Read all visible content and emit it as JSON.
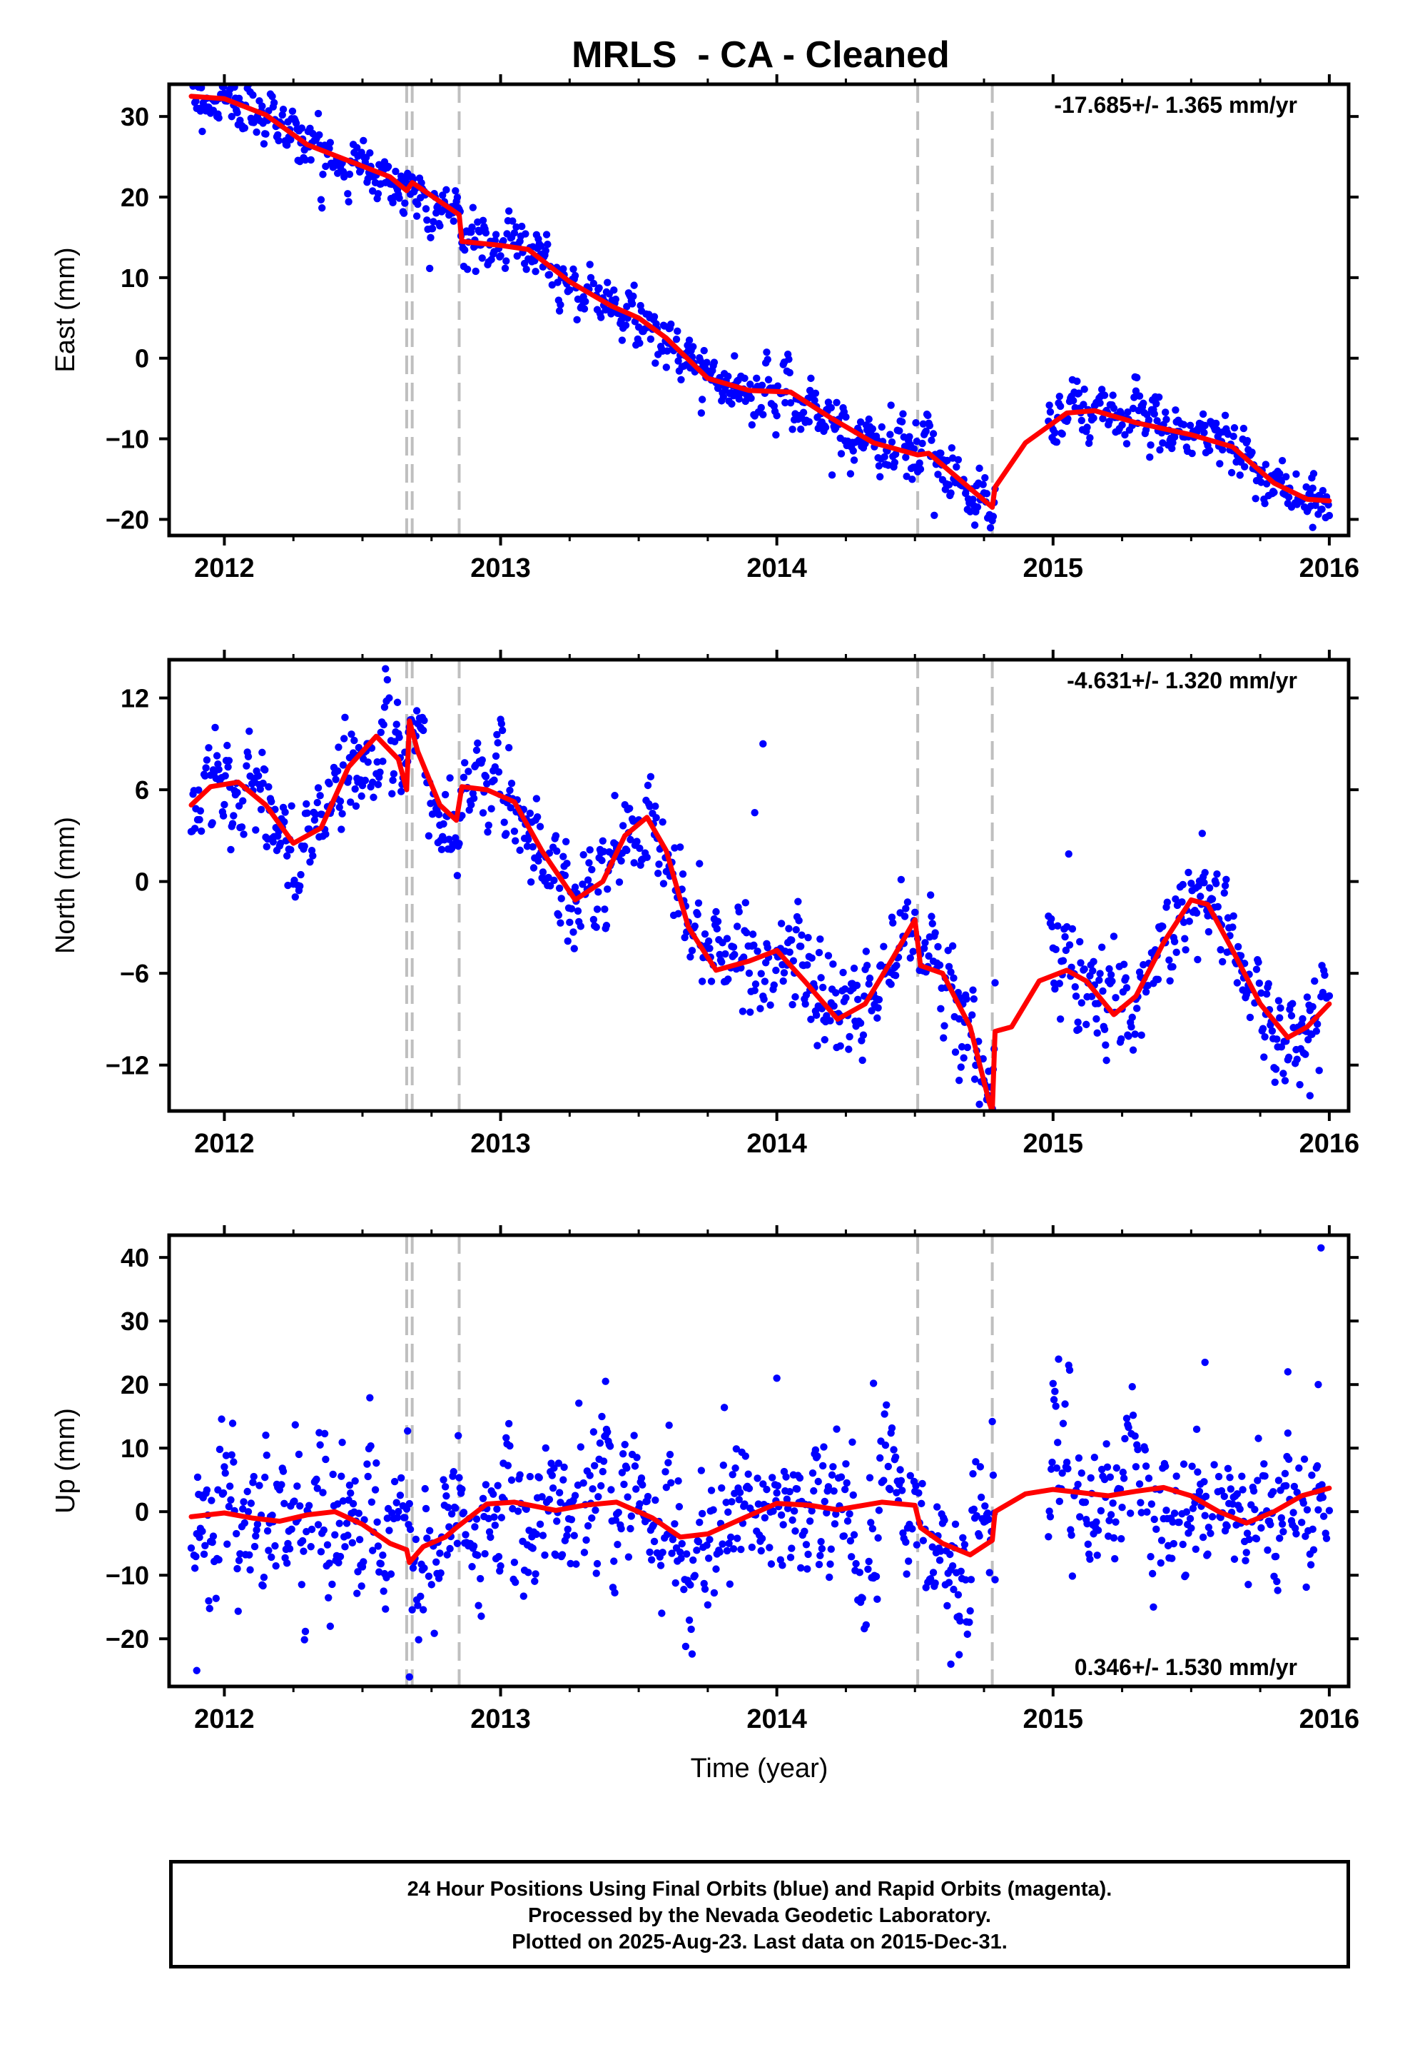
{
  "title": "MRLS  - CA - Cleaned",
  "xlabel": "Time (year)",
  "colors": {
    "final_orbits": "#0000ff",
    "model_fit": "#ff0000",
    "offset_lines": "#bfbfbf",
    "frame": "#000000"
  },
  "footer": {
    "line1": "24 Hour Positions Using Final Orbits (blue) and Rapid Orbits (magenta).",
    "line2": "Processed by the Nevada Geodetic Laboratory.",
    "line3": "Plotted on 2025-Aug-23. Last data on 2015-Dec-31."
  },
  "chart_data": [
    {
      "type": "scatter",
      "name": "east",
      "ylabel": "East (mm)",
      "rate_label": "-17.685+/- 1.365 mm/yr",
      "rate_position": "top-right",
      "xlim": [
        2011.8,
        2016.07
      ],
      "ylim": [
        -22,
        34
      ],
      "xticks": [
        2012,
        2013,
        2014,
        2015,
        2016
      ],
      "yticks": [
        -20,
        -10,
        0,
        10,
        20,
        30
      ],
      "offset_epochs": [
        2012.66,
        2012.68,
        2012.85,
        2014.51,
        2014.78
      ],
      "data_gap": [
        2014.79,
        2014.98
      ],
      "seasonal_scatter_mm": 1.6,
      "outliers": [
        [
          2014.57,
          -19.5
        ],
        [
          2015.94,
          -21
        ],
        [
          2014.2,
          -14.5
        ]
      ],
      "trend_knots": [
        [
          2011.88,
          32.5
        ],
        [
          2012.0,
          32.2
        ],
        [
          2012.15,
          30.2
        ],
        [
          2012.3,
          26.5
        ],
        [
          2012.45,
          24.5
        ],
        [
          2012.6,
          22.5
        ],
        [
          2012.66,
          20.8
        ],
        [
          2012.68,
          21.8
        ],
        [
          2012.85,
          17.8
        ],
        [
          2012.86,
          14.5
        ],
        [
          2013.0,
          14.0
        ],
        [
          2013.1,
          13.5
        ],
        [
          2013.25,
          9.5
        ],
        [
          2013.4,
          6.5
        ],
        [
          2013.5,
          5.0
        ],
        [
          2013.6,
          2.5
        ],
        [
          2013.75,
          -2.5
        ],
        [
          2013.9,
          -4.0
        ],
        [
          2014.05,
          -4.2
        ],
        [
          2014.2,
          -7.5
        ],
        [
          2014.35,
          -10.5
        ],
        [
          2014.51,
          -12.0
        ],
        [
          2014.55,
          -11.8
        ],
        [
          2014.78,
          -18.5
        ],
        [
          2014.79,
          -16.0
        ],
        [
          2014.9,
          -10.5
        ],
        [
          2015.05,
          -6.8
        ],
        [
          2015.15,
          -6.5
        ],
        [
          2015.3,
          -8.0
        ],
        [
          2015.5,
          -9.5
        ],
        [
          2015.65,
          -11.0
        ],
        [
          2015.8,
          -15.5
        ],
        [
          2015.92,
          -17.5
        ],
        [
          2016.0,
          -17.7
        ]
      ]
    },
    {
      "type": "scatter",
      "name": "north",
      "ylabel": "North (mm)",
      "rate_label": "-4.631+/- 1.320 mm/yr",
      "rate_position": "top-right",
      "xlim": [
        2011.8,
        2016.07
      ],
      "ylim": [
        -15,
        14.5
      ],
      "xticks": [
        2012,
        2013,
        2014,
        2015,
        2016
      ],
      "yticks": [
        -12,
        -6,
        0,
        6,
        12
      ],
      "offset_epochs": [
        2012.66,
        2012.68,
        2012.85,
        2014.51,
        2014.78
      ],
      "data_gap": [
        2014.79,
        2014.98
      ],
      "seasonal_scatter_mm": 1.6,
      "outliers": [
        [
          2013.92,
          4.5
        ],
        [
          2013.95,
          9.0
        ],
        [
          2015.93,
          -14.0
        ],
        [
          2014.66,
          -13.0
        ]
      ],
      "trend_knots": [
        [
          2011.88,
          5.0
        ],
        [
          2011.95,
          6.2
        ],
        [
          2012.05,
          6.5
        ],
        [
          2012.15,
          5.0
        ],
        [
          2012.25,
          2.5
        ],
        [
          2012.35,
          3.5
        ],
        [
          2012.45,
          7.5
        ],
        [
          2012.55,
          9.5
        ],
        [
          2012.63,
          8.0
        ],
        [
          2012.66,
          6.0
        ],
        [
          2012.67,
          10.5
        ],
        [
          2012.7,
          8.5
        ],
        [
          2012.78,
          5.0
        ],
        [
          2012.84,
          4.0
        ],
        [
          2012.86,
          6.2
        ],
        [
          2012.95,
          6.0
        ],
        [
          2013.05,
          5.2
        ],
        [
          2013.15,
          2.0
        ],
        [
          2013.27,
          -1.2
        ],
        [
          2013.37,
          0.0
        ],
        [
          2013.45,
          3.0
        ],
        [
          2013.53,
          4.2
        ],
        [
          2013.6,
          2.0
        ],
        [
          2013.68,
          -3.0
        ],
        [
          2013.78,
          -5.8
        ],
        [
          2013.9,
          -5.2
        ],
        [
          2014.0,
          -4.5
        ],
        [
          2014.1,
          -6.5
        ],
        [
          2014.22,
          -9.0
        ],
        [
          2014.32,
          -8.0
        ],
        [
          2014.42,
          -5.0
        ],
        [
          2014.5,
          -2.5
        ],
        [
          2014.52,
          -5.5
        ],
        [
          2014.6,
          -6.0
        ],
        [
          2014.7,
          -9.5
        ],
        [
          2014.77,
          -14.5
        ],
        [
          2014.78,
          -15.0
        ],
        [
          2014.79,
          -9.8
        ],
        [
          2014.85,
          -9.5
        ],
        [
          2014.95,
          -6.5
        ],
        [
          2015.05,
          -5.8
        ],
        [
          2015.12,
          -6.5
        ],
        [
          2015.22,
          -8.7
        ],
        [
          2015.3,
          -7.5
        ],
        [
          2015.4,
          -4.0
        ],
        [
          2015.5,
          -1.2
        ],
        [
          2015.56,
          -1.5
        ],
        [
          2015.65,
          -4.5
        ],
        [
          2015.75,
          -8.0
        ],
        [
          2015.85,
          -10.2
        ],
        [
          2015.92,
          -9.5
        ],
        [
          2016.0,
          -8.0
        ]
      ]
    },
    {
      "type": "scatter",
      "name": "up",
      "ylabel": "Up (mm)",
      "rate_label": "0.346+/- 1.530 mm/yr",
      "rate_position": "bottom-right",
      "xlim": [
        2011.8,
        2016.07
      ],
      "ylim": [
        -27.5,
        43.5
      ],
      "xticks": [
        2012,
        2013,
        2014,
        2015,
        2016
      ],
      "yticks": [
        -20,
        -10,
        0,
        10,
        20,
        30,
        40
      ],
      "offset_epochs": [
        2012.66,
        2012.68,
        2012.85,
        2014.51,
        2014.78
      ],
      "data_gap": [
        2014.79,
        2014.98
      ],
      "seasonal_scatter_mm": 5.5,
      "outliers": [
        [
          2011.9,
          -25
        ],
        [
          2012.67,
          -26
        ],
        [
          2015.97,
          41.5
        ],
        [
          2014.63,
          -24
        ],
        [
          2014.66,
          -22.5
        ],
        [
          2015.02,
          24
        ],
        [
          2015.55,
          23.5
        ],
        [
          2015.85,
          22
        ],
        [
          2015.96,
          20
        ],
        [
          2013.38,
          20.5
        ],
        [
          2014.35,
          20.2
        ],
        [
          2014.0,
          21
        ]
      ],
      "trend_knots": [
        [
          2011.88,
          -0.8
        ],
        [
          2012.0,
          -0.2
        ],
        [
          2012.1,
          -1.0
        ],
        [
          2012.2,
          -1.5
        ],
        [
          2012.3,
          -0.5
        ],
        [
          2012.4,
          0.0
        ],
        [
          2012.5,
          -2.0
        ],
        [
          2012.6,
          -5.0
        ],
        [
          2012.66,
          -6.0
        ],
        [
          2012.67,
          -8.0
        ],
        [
          2012.72,
          -5.5
        ],
        [
          2012.8,
          -4.0
        ],
        [
          2012.84,
          -2.5
        ],
        [
          2012.95,
          1.2
        ],
        [
          2013.05,
          1.5
        ],
        [
          2013.2,
          0.2
        ],
        [
          2013.3,
          1.0
        ],
        [
          2013.42,
          1.5
        ],
        [
          2013.55,
          -1.0
        ],
        [
          2013.65,
          -4.0
        ],
        [
          2013.75,
          -3.5
        ],
        [
          2013.88,
          -1.0
        ],
        [
          2014.0,
          1.3
        ],
        [
          2014.12,
          1.0
        ],
        [
          2014.22,
          0.3
        ],
        [
          2014.38,
          1.5
        ],
        [
          2014.5,
          1.0
        ],
        [
          2014.52,
          -2.5
        ],
        [
          2014.6,
          -5.0
        ],
        [
          2014.7,
          -6.8
        ],
        [
          2014.78,
          -4.5
        ],
        [
          2014.79,
          0.0
        ],
        [
          2014.9,
          2.8
        ],
        [
          2015.0,
          3.5
        ],
        [
          2015.1,
          3.0
        ],
        [
          2015.2,
          2.5
        ],
        [
          2015.3,
          3.2
        ],
        [
          2015.4,
          3.8
        ],
        [
          2015.5,
          2.5
        ],
        [
          2015.6,
          0.0
        ],
        [
          2015.7,
          -1.8
        ],
        [
          2015.8,
          0.0
        ],
        [
          2015.9,
          2.5
        ],
        [
          2016.0,
          3.7
        ]
      ]
    }
  ]
}
